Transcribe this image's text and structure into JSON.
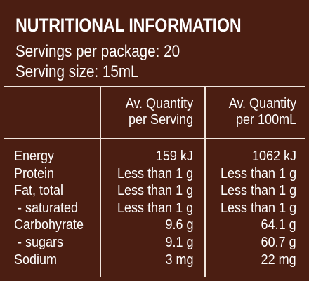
{
  "title": "NUTRITIONAL INFORMATION",
  "servings_per_package": "Servings per package: 20",
  "serving_size": "Serving size: 15mL",
  "columns": {
    "per_serving": [
      "Av. Quantity",
      "per Serving"
    ],
    "per_100ml": [
      "Av. Quantity",
      "per 100mL"
    ]
  },
  "rows": [
    {
      "label": "Energy",
      "per_serving": "159 kJ",
      "per_100ml": "1062 kJ"
    },
    {
      "label": "Protein",
      "per_serving": "Less than 1 g",
      "per_100ml": "Less than 1 g"
    },
    {
      "label": "Fat, total",
      "per_serving": "Less than 1 g",
      "per_100ml": "Less than 1 g"
    },
    {
      "label": " - saturated",
      "per_serving": "Less than 1 g",
      "per_100ml": "Less than 1 g"
    },
    {
      "label": "Carbohyrate",
      "per_serving": "9.6 g",
      "per_100ml": "64.1 g"
    },
    {
      "label": " - sugars",
      "per_serving": "9.1 g",
      "per_100ml": "60.7 g"
    },
    {
      "label": "Sodium",
      "per_serving": "3 mg",
      "per_100ml": "22 mg"
    }
  ],
  "colors": {
    "background": "#4b1e12",
    "text": "#ffffff",
    "rule": "#f2e6de"
  }
}
